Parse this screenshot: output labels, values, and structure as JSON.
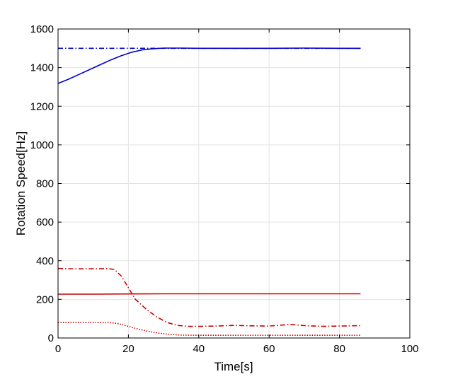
{
  "chart_data": {
    "type": "line",
    "title": "",
    "xlabel": "Time[s]",
    "ylabel": "Rotation Speed[Hz]",
    "xlim": [
      0,
      100
    ],
    "ylim": [
      0,
      1600
    ],
    "xticks": [
      0,
      20,
      40,
      60,
      80,
      100
    ],
    "yticks": [
      0,
      200,
      400,
      600,
      800,
      1000,
      1200,
      1400,
      1600
    ],
    "grid": true,
    "legend": "none",
    "series": [
      {
        "color": "#0000cc",
        "style": "dashdot",
        "x": [
          0,
          86
        ],
        "y": [
          1500,
          1500
        ]
      },
      {
        "color": "#0000cc",
        "style": "solid",
        "x": [
          0,
          3,
          6,
          9,
          12,
          15,
          18,
          21,
          24,
          27,
          30,
          35,
          40,
          50,
          60,
          70,
          80,
          86
        ],
        "y": [
          1318,
          1340,
          1365,
          1390,
          1415,
          1440,
          1462,
          1480,
          1492,
          1498,
          1501,
          1501,
          1500,
          1500,
          1500,
          1501,
          1500,
          1500
        ]
      },
      {
        "color": "#cc0000",
        "style": "dashdot",
        "x": [
          0,
          5,
          10,
          14,
          16,
          18,
          20,
          22,
          25,
          28,
          31,
          34,
          37,
          40,
          45,
          50,
          55,
          60,
          63,
          66,
          70,
          75,
          80,
          86
        ],
        "y": [
          360,
          358,
          358,
          359,
          355,
          320,
          260,
          200,
          150,
          110,
          80,
          65,
          60,
          60,
          62,
          65,
          63,
          62,
          66,
          70,
          64,
          60,
          62,
          64
        ]
      },
      {
        "color": "#cc0000",
        "style": "solid",
        "x": [
          0,
          10,
          20,
          30,
          40,
          50,
          60,
          70,
          80,
          86
        ],
        "y": [
          227,
          227,
          228,
          229,
          229,
          229,
          229,
          229,
          229,
          229
        ]
      },
      {
        "color": "#cc0000",
        "style": "dotted",
        "x": [
          0,
          5,
          10,
          15,
          17,
          20,
          23,
          26,
          29,
          32,
          35,
          40,
          50,
          60,
          70,
          80,
          86
        ],
        "y": [
          80,
          80,
          80,
          79,
          75,
          60,
          45,
          33,
          24,
          18,
          15,
          14,
          14,
          14,
          14,
          14,
          14
        ]
      }
    ]
  }
}
